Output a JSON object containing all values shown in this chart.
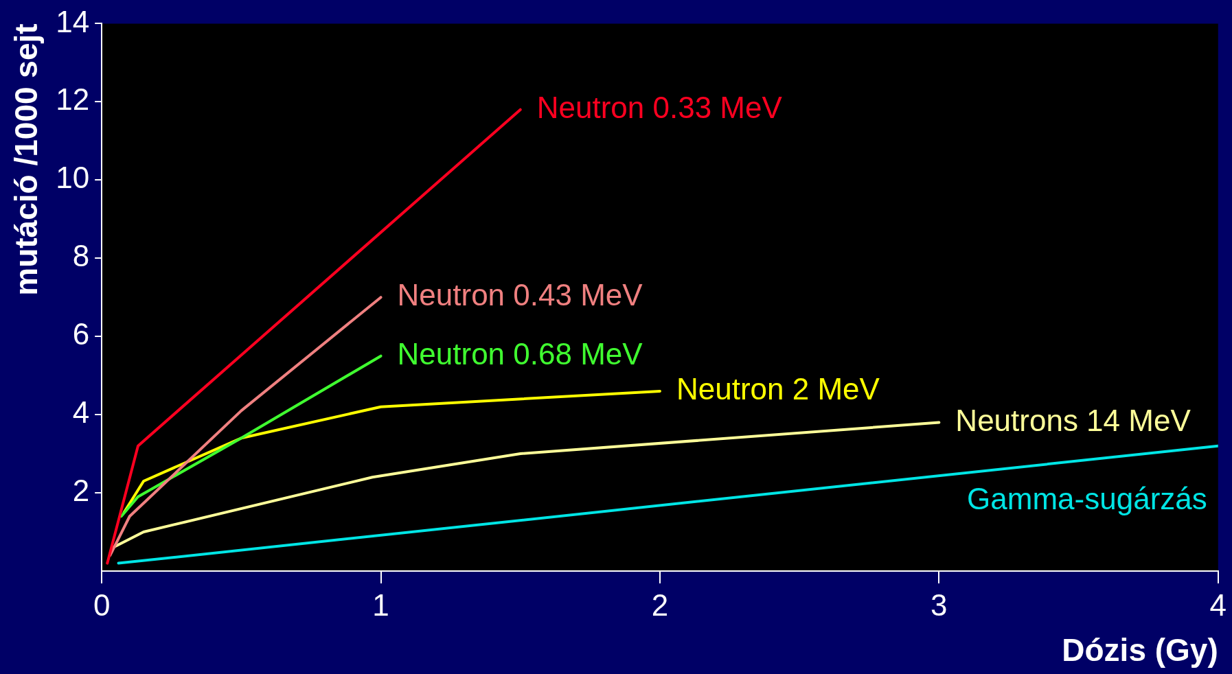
{
  "chart_data": {
    "type": "line",
    "xlabel": "Dózis (Gy)",
    "ylabel": "mutáció /1000 sejt",
    "xlim": [
      0,
      4
    ],
    "ylim": [
      0,
      14
    ],
    "xticks": [
      0,
      1,
      2,
      3,
      4
    ],
    "yticks": [
      2,
      4,
      6,
      8,
      10,
      12,
      14
    ],
    "grid": false,
    "legend": false,
    "marker": "none",
    "line_style": "solid",
    "series": [
      {
        "name": "Neutron 0.33 MeV",
        "color": "#ff0020",
        "x": [
          0.02,
          0.13,
          1.5
        ],
        "values": [
          0.2,
          3.2,
          11.8
        ]
      },
      {
        "name": "Neutron 0.43 MeV",
        "color": "#f08080",
        "x": [
          0.03,
          0.1,
          0.5,
          1.0
        ],
        "values": [
          0.4,
          1.4,
          4.1,
          7.0
        ]
      },
      {
        "name": "Neutron 0.68 MeV",
        "color": "#40ff30",
        "x": [
          0.07,
          0.13,
          0.5,
          1.0
        ],
        "values": [
          1.4,
          1.9,
          3.4,
          5.5
        ]
      },
      {
        "name": "Neutron 2 MeV",
        "color": "#ffff00",
        "x": [
          0.08,
          0.15,
          0.5,
          1.0,
          2.0
        ],
        "values": [
          1.5,
          2.3,
          3.4,
          4.2,
          4.6
        ]
      },
      {
        "name": "Neutrons 14 MeV",
        "color": "#ffff99",
        "x": [
          0.04,
          0.15,
          0.97,
          1.5,
          3.0
        ],
        "values": [
          0.6,
          1.0,
          2.4,
          3.0,
          3.8
        ]
      },
      {
        "name": "Gamma-sugárzás",
        "color": "#00e5e5",
        "x": [
          0.06,
          4.0
        ],
        "values": [
          0.2,
          3.2
        ]
      }
    ]
  }
}
